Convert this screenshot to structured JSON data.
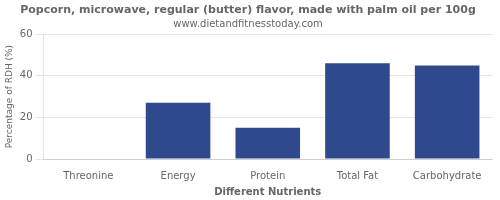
{
  "chart_data": {
    "type": "bar",
    "title": "Popcorn, microwave, regular (butter) flavor, made with palm oil per 100g",
    "subtitle": "www.dietandfitnesstoday.com",
    "categories": [
      "Threonine",
      "Energy",
      "Protein",
      "Total Fat",
      "Carbohydrate"
    ],
    "values": [
      0.3,
      27,
      15,
      46,
      45
    ],
    "color": "#2e4a8c",
    "xlabel": "Different Nutrients",
    "ylabel": "Percentage of RDH (%)",
    "ylim": [
      0,
      60
    ],
    "yticks": [
      0,
      20,
      40,
      60
    ],
    "grid": true
  }
}
